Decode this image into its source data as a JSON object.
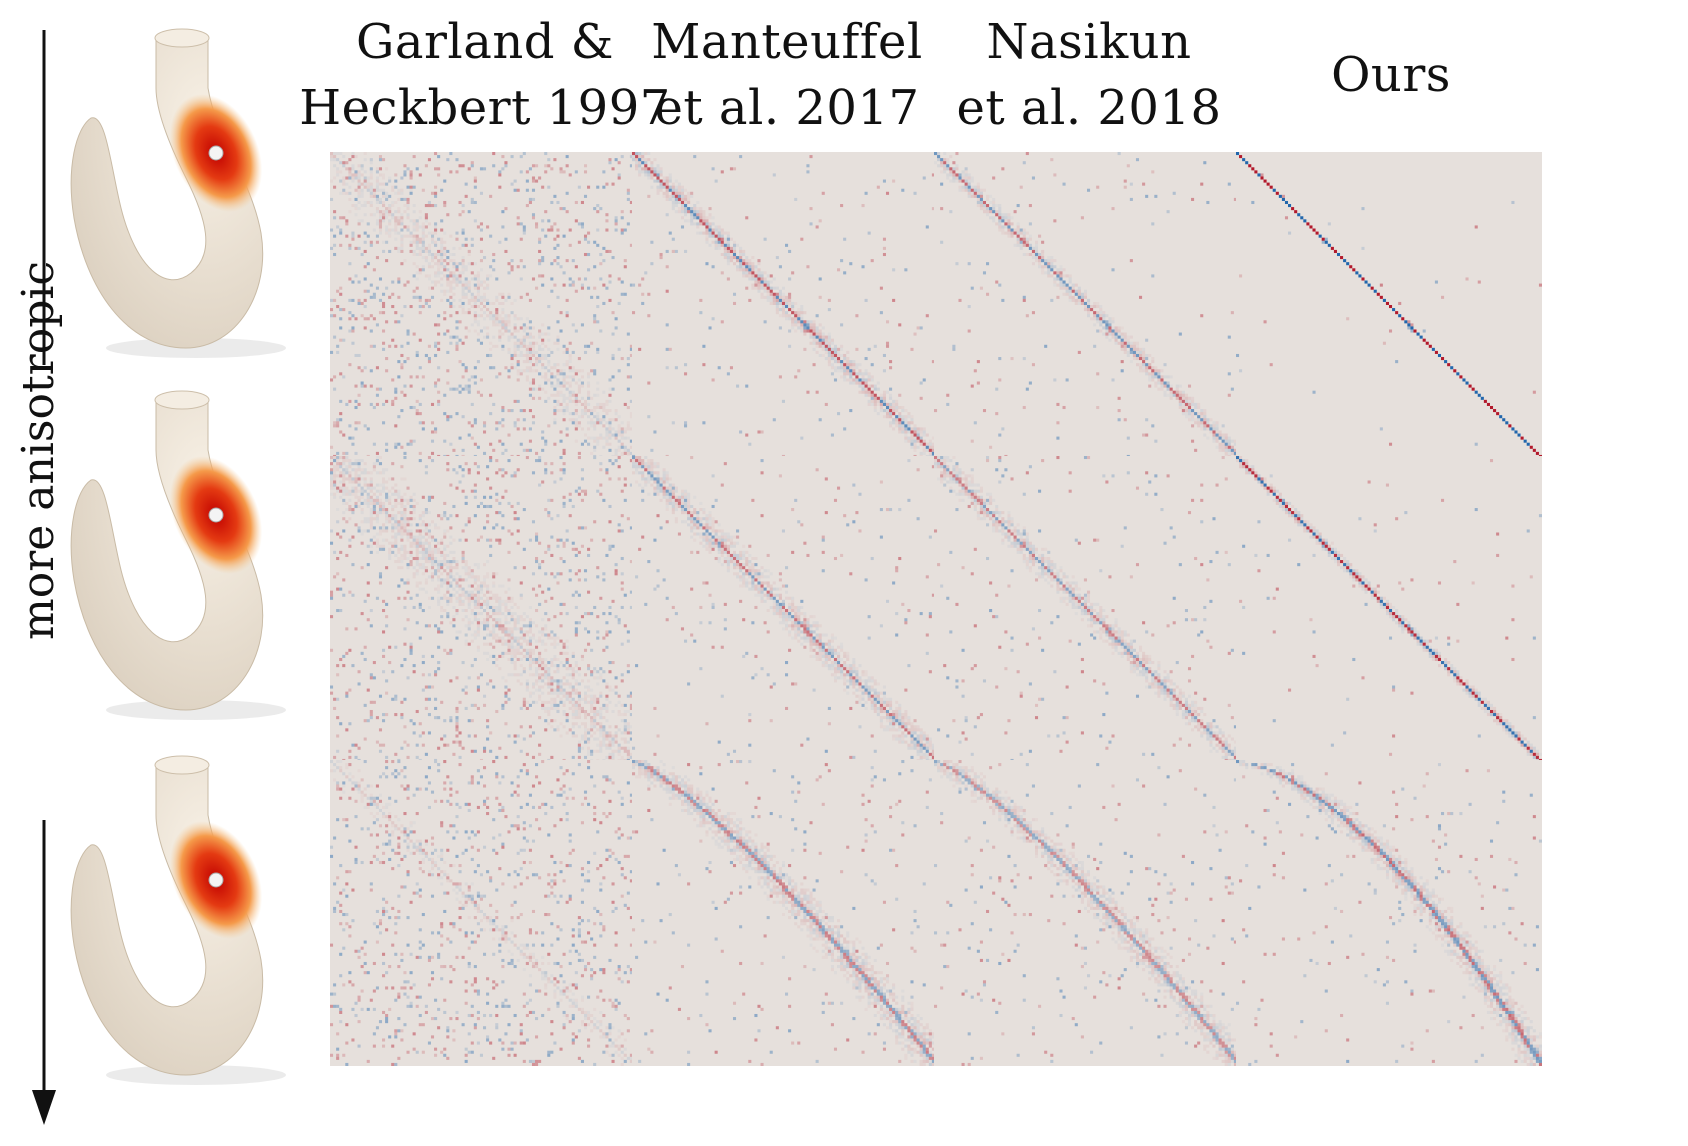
{
  "figure": {
    "columns": [
      {
        "line1": "Garland &",
        "line2": "Heckbert 1997"
      },
      {
        "line1": "Manteuffel",
        "line2": "et al. 2017"
      },
      {
        "line1": "Nasikun",
        "line2": "et al. 2018"
      },
      {
        "line1": "Ours",
        "line2": ""
      }
    ],
    "axis_label": "more anisotropic",
    "colors": {
      "background_matrix": "#e6e0dc",
      "positive": "#b2182b",
      "negative": "#2166ac",
      "mesh_base": "#efe6d8",
      "heat": "#d62a0f"
    }
  }
}
